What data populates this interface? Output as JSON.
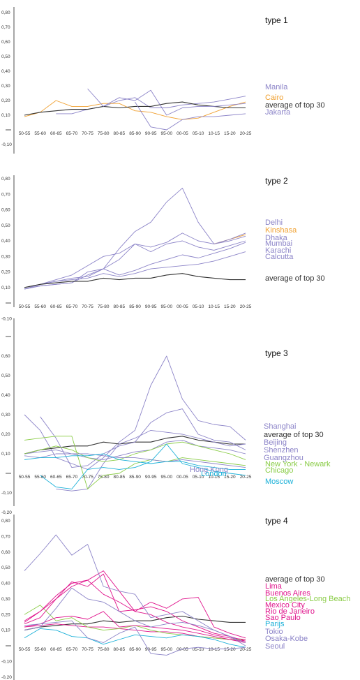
{
  "x_categories": [
    "50-55",
    "55-60",
    "60-65",
    "65-70",
    "70-75",
    "75-80",
    "80-85",
    "85-90",
    "90-95",
    "95-00",
    "00-05",
    "05-10",
    "10-15",
    "15-20",
    "20-25"
  ],
  "colors": {
    "axis": "#222222",
    "average": "#333333",
    "purple": "#8c84c8",
    "orange": "#f0a030",
    "green": "#8acc46",
    "cyan": "#1ab0d8",
    "magenta": "#e0148c"
  },
  "chart_data": [
    {
      "type": "line",
      "title": "type 1",
      "y_tick_labels": [
        "0,80",
        "0,70",
        "0,60",
        "0,50",
        "0,40",
        "0,30",
        "0,20",
        "0,10",
        "",
        "-0,10"
      ],
      "ylim": [
        -0.1,
        0.8
      ],
      "legend_placement": "right",
      "series": [
        {
          "name": "Manila",
          "color_key": "purple",
          "values": [
            null,
            null,
            0.11,
            0.11,
            0.14,
            0.16,
            0.2,
            0.22,
            0.15,
            0.15,
            0.17,
            0.18,
            0.19,
            0.21,
            0.23
          ]
        },
        {
          "name": "Cairo",
          "color_key": "orange",
          "values": [
            0.09,
            0.12,
            0.2,
            0.16,
            0.16,
            0.18,
            0.18,
            0.13,
            0.12,
            0.09,
            0.07,
            0.08,
            0.12,
            0.16,
            0.19
          ]
        },
        {
          "name": "average of top 30",
          "color_key": "average",
          "values": [
            0.1,
            0.12,
            0.13,
            0.14,
            0.14,
            0.16,
            0.15,
            0.16,
            0.16,
            0.18,
            0.19,
            0.17,
            0.16,
            0.15,
            0.15
          ]
        },
        {
          "name": "Jakarta",
          "color_key": "purple",
          "values": [
            null,
            null,
            null,
            null,
            0.28,
            0.16,
            0.22,
            0.2,
            0.27,
            0.1,
            0.15,
            0.16,
            0.16,
            0.17,
            0.18
          ]
        },
        {
          "name": "",
          "color_key": "purple",
          "values": [
            null,
            null,
            null,
            null,
            null,
            null,
            null,
            0.19,
            0.02,
            0.0,
            0.07,
            0.09,
            0.09,
            0.1,
            0.11
          ]
        }
      ]
    },
    {
      "type": "line",
      "title": "type 2",
      "y_tick_labels": [
        "0,80",
        "0,70",
        "0,60",
        "0,50",
        "0,40",
        "0,30",
        "0,20",
        "0,10",
        "",
        "-0,10"
      ],
      "ylim": [
        -0.1,
        0.8
      ],
      "legend_placement": "right",
      "series": [
        {
          "name": "Delhi",
          "color_key": "purple",
          "values": [
            0.09,
            0.11,
            0.12,
            0.13,
            0.18,
            0.22,
            0.35,
            0.46,
            0.52,
            0.65,
            0.74,
            0.52,
            0.38,
            0.4,
            0.43
          ]
        },
        {
          "name": "Kinshasa",
          "color_key": "orange",
          "values": [
            null,
            null,
            null,
            null,
            null,
            null,
            null,
            null,
            null,
            null,
            null,
            null,
            0.38,
            0.41,
            0.44
          ]
        },
        {
          "name": "Dhaka",
          "color_key": "purple",
          "values": [
            0.09,
            0.12,
            0.15,
            0.18,
            0.24,
            0.3,
            0.32,
            0.38,
            0.36,
            0.39,
            0.45,
            0.4,
            0.38,
            0.41,
            0.45
          ]
        },
        {
          "name": "Mumbai",
          "color_key": "purple",
          "values": [
            0.09,
            0.11,
            0.12,
            0.13,
            0.2,
            0.22,
            0.28,
            0.38,
            0.33,
            0.38,
            0.4,
            0.36,
            0.34,
            0.37,
            0.4
          ]
        },
        {
          "name": "Karachi",
          "color_key": "purple",
          "values": [
            0.09,
            0.12,
            0.14,
            0.16,
            0.17,
            0.22,
            0.18,
            0.21,
            0.25,
            0.28,
            0.31,
            0.29,
            0.32,
            0.35,
            0.39
          ]
        },
        {
          "name": "Calcutta",
          "color_key": "purple",
          "values": [
            0.1,
            0.12,
            0.14,
            0.15,
            0.16,
            0.19,
            0.17,
            0.19,
            0.22,
            0.23,
            0.24,
            0.25,
            0.27,
            0.3,
            0.33
          ]
        },
        {
          "name": "average of top 30",
          "color_key": "average",
          "values": [
            0.1,
            0.12,
            0.13,
            0.14,
            0.14,
            0.16,
            0.15,
            0.16,
            0.16,
            0.18,
            0.19,
            0.17,
            0.16,
            0.15,
            0.15
          ]
        }
      ]
    },
    {
      "type": "line",
      "title": "type 3",
      "y_tick_labels": [
        "",
        "0,60",
        "0,50",
        "0,40",
        "0,30",
        "0,20",
        "0,10",
        "",
        "-0,10",
        "-0,20"
      ],
      "ylim": [
        -0.2,
        0.7
      ],
      "legend_placement": "right",
      "series": [
        {
          "name": "Shanghai",
          "color_key": "purple",
          "values": [
            0.3,
            0.22,
            0.08,
            0.05,
            0.02,
            0.08,
            0.16,
            0.22,
            0.45,
            0.6,
            0.38,
            0.27,
            0.25,
            0.24,
            0.17
          ]
        },
        {
          "name": "average of top 30",
          "color_key": "average",
          "values": [
            0.1,
            0.12,
            0.13,
            0.14,
            0.14,
            0.16,
            0.15,
            0.16,
            0.16,
            0.18,
            0.19,
            0.17,
            0.16,
            0.15,
            0.15
          ]
        },
        {
          "name": "Beijing",
          "color_key": "purple",
          "values": [
            null,
            0.29,
            0.18,
            0.03,
            0.04,
            0.1,
            0.14,
            0.16,
            0.26,
            0.31,
            0.33,
            0.2,
            0.17,
            0.16,
            0.12
          ]
        },
        {
          "name": "Shenzhen",
          "color_key": "purple",
          "values": [
            null,
            null,
            -0.08,
            -0.09,
            -0.08,
            0.05,
            0.15,
            0.18,
            0.22,
            0.21,
            0.2,
            0.18,
            0.16,
            0.14,
            0.15
          ]
        },
        {
          "name": "Guangzhou",
          "color_key": "purple",
          "values": [
            0.1,
            0.11,
            0.12,
            0.1,
            0.08,
            0.07,
            0.09,
            0.11,
            0.12,
            0.16,
            0.17,
            0.14,
            0.13,
            0.12,
            0.1
          ]
        },
        {
          "name": "New York - Newark",
          "color_key": "green",
          "values": [
            0.17,
            0.18,
            0.19,
            0.19,
            -0.08,
            -0.01,
            0.0,
            0.05,
            0.07,
            0.06,
            0.08,
            0.07,
            0.06,
            0.05,
            0.04
          ]
        },
        {
          "name": "Chicago",
          "color_key": "green",
          "values": [
            0.1,
            0.12,
            0.14,
            0.12,
            0.08,
            0.06,
            0.07,
            0.1,
            0.12,
            0.15,
            0.16,
            0.14,
            0.12,
            0.1,
            0.07
          ]
        },
        {
          "name": "Hong Kong",
          "color_key": "purple",
          "values": [
            0.09,
            0.08,
            0.1,
            0.1,
            0.1,
            0.09,
            0.08,
            0.08,
            0.07,
            0.06,
            0.07,
            0.06,
            0.05,
            0.04,
            0.03
          ]
        },
        {
          "name": "London",
          "color_key": "cyan",
          "values": [
            0.07,
            0.08,
            0.08,
            0.09,
            0.09,
            0.1,
            0.07,
            0.06,
            0.05,
            0.06,
            0.06,
            0.04,
            0.03,
            0.02,
            0.02
          ]
        },
        {
          "name": "Moscow",
          "color_key": "cyan",
          "values": [
            null,
            -0.01,
            -0.07,
            -0.08,
            0.02,
            0.03,
            0.02,
            0.03,
            0.06,
            0.15,
            0.05,
            0.03,
            0.01,
            0.0,
            -0.01
          ]
        }
      ]
    },
    {
      "type": "line",
      "title": "type 4",
      "y_tick_labels": [
        "0,80",
        "0,70",
        "0,60",
        "0,50",
        "0,40",
        "0,30",
        "0,20",
        "0,10",
        "",
        "-0,10",
        "-0,20"
      ],
      "ylim": [
        -0.2,
        0.8
      ],
      "legend_placement": "right",
      "series": [
        {
          "name": "average of top 30",
          "color_key": "average",
          "values": [
            0.1,
            0.12,
            0.13,
            0.14,
            0.14,
            0.16,
            0.15,
            0.16,
            0.16,
            0.18,
            0.19,
            0.17,
            0.16,
            0.15,
            0.15
          ]
        },
        {
          "name": "Lima",
          "color_key": "magenta",
          "values": [
            0.14,
            0.18,
            0.3,
            0.41,
            0.38,
            0.46,
            0.22,
            0.23,
            0.25,
            0.22,
            0.16,
            0.12,
            0.08,
            0.06,
            0.03
          ]
        },
        {
          "name": "Buenos Aires",
          "color_key": "magenta",
          "values": [
            0.12,
            0.13,
            0.14,
            0.13,
            0.12,
            0.12,
            0.11,
            0.1,
            0.09,
            0.09,
            0.08,
            0.06,
            0.05,
            0.04,
            0.02
          ]
        },
        {
          "name": "Los Angeles-Long Beach",
          "color_key": "green",
          "values": [
            0.2,
            0.26,
            0.16,
            0.18,
            0.12,
            0.1,
            0.11,
            0.13,
            0.1,
            0.08,
            0.07,
            0.06,
            0.05,
            0.04,
            0.04
          ]
        },
        {
          "name": "Mexico City",
          "color_key": "magenta",
          "values": [
            0.15,
            0.22,
            0.32,
            0.4,
            0.42,
            0.48,
            0.35,
            0.22,
            0.28,
            0.24,
            0.3,
            0.31,
            0.12,
            0.08,
            0.05
          ]
        },
        {
          "name": "Rio de Janeiro",
          "color_key": "magenta",
          "values": [
            0.12,
            0.14,
            0.18,
            0.19,
            0.17,
            0.22,
            0.12,
            0.13,
            0.12,
            0.11,
            0.1,
            0.08,
            0.06,
            0.04,
            0.03
          ]
        },
        {
          "name": "Sao Paulo",
          "color_key": "magenta",
          "values": [
            0.16,
            0.22,
            0.3,
            0.38,
            0.42,
            0.33,
            0.28,
            0.22,
            0.2,
            0.15,
            0.12,
            0.1,
            0.07,
            0.05,
            0.04
          ]
        },
        {
          "name": "Parijs",
          "color_key": "cyan",
          "values": [
            0.05,
            0.11,
            0.1,
            0.06,
            0.05,
            0.01,
            0.04,
            0.07,
            0.06,
            0.05,
            0.07,
            0.06,
            0.04,
            0.01,
            -0.01
          ]
        },
        {
          "name": "Tokio",
          "color_key": "purple",
          "values": [
            0.48,
            0.59,
            0.71,
            0.58,
            0.65,
            0.38,
            0.35,
            0.33,
            0.18,
            0.2,
            0.22,
            0.16,
            0.1,
            0.06,
            0.0
          ]
        },
        {
          "name": "Osaka-Kobe",
          "color_key": "purple",
          "values": [
            0.1,
            0.12,
            0.24,
            0.37,
            0.3,
            0.28,
            0.22,
            0.16,
            0.12,
            0.14,
            0.15,
            0.13,
            0.1,
            0.06,
            0.02
          ]
        },
        {
          "name": "Seoul",
          "color_key": "purple",
          "values": [
            0.13,
            0.14,
            0.15,
            0.16,
            0.05,
            0.02,
            0.08,
            0.12,
            -0.05,
            -0.06,
            -0.02,
            -0.01,
            -0.02,
            -0.02,
            -0.01
          ]
        }
      ]
    }
  ],
  "legends": [
    [
      {
        "label": "Manila",
        "color_key": "purple"
      },
      {
        "label": "Cairo",
        "color_key": "orange"
      },
      {
        "label": "average of top 30",
        "color_key": "average"
      },
      {
        "label": "Jakarta",
        "color_key": "purple"
      }
    ],
    [
      {
        "label": "Delhi",
        "color_key": "purple"
      },
      {
        "label": "Kinshasa",
        "color_key": "orange"
      },
      {
        "label": "Dhaka",
        "color_key": "purple"
      },
      {
        "label": "Mumbai",
        "color_key": "purple"
      },
      {
        "label": "Karachi",
        "color_key": "purple"
      },
      {
        "label": "Calcutta",
        "color_key": "purple"
      },
      {
        "label": "average of top 30",
        "color_key": "average"
      }
    ],
    [
      {
        "label": "Shanghai",
        "color_key": "purple"
      },
      {
        "label": "average of top 30",
        "color_key": "average"
      },
      {
        "label": "Beijing",
        "color_key": "purple"
      },
      {
        "label": "Shenzhen",
        "color_key": "purple"
      },
      {
        "label": "Guangzhou",
        "color_key": "purple"
      },
      {
        "label": "New York - Newark",
        "color_key": "green"
      },
      {
        "label": "Chicago",
        "color_key": "green"
      },
      {
        "label": "Hong Kong",
        "color_key": "purple"
      },
      {
        "label": "London",
        "color_key": "cyan"
      },
      {
        "label": "Moscow",
        "color_key": "cyan"
      }
    ],
    [
      {
        "label": "average of top 30",
        "color_key": "average"
      },
      {
        "label": "Lima",
        "color_key": "magenta"
      },
      {
        "label": "Buenos Aires",
        "color_key": "magenta"
      },
      {
        "label": "Los Angeles-Long Beach",
        "color_key": "green"
      },
      {
        "label": "Mexico City",
        "color_key": "magenta"
      },
      {
        "label": "Rio de Janeiro",
        "color_key": "magenta"
      },
      {
        "label": "Sao Paulo",
        "color_key": "magenta"
      },
      {
        "label": "Parijs",
        "color_key": "cyan"
      },
      {
        "label": "Tokio",
        "color_key": "purple"
      },
      {
        "label": "Osaka-Kobe",
        "color_key": "purple"
      },
      {
        "label": "Seoul",
        "color_key": "purple"
      }
    ]
  ]
}
